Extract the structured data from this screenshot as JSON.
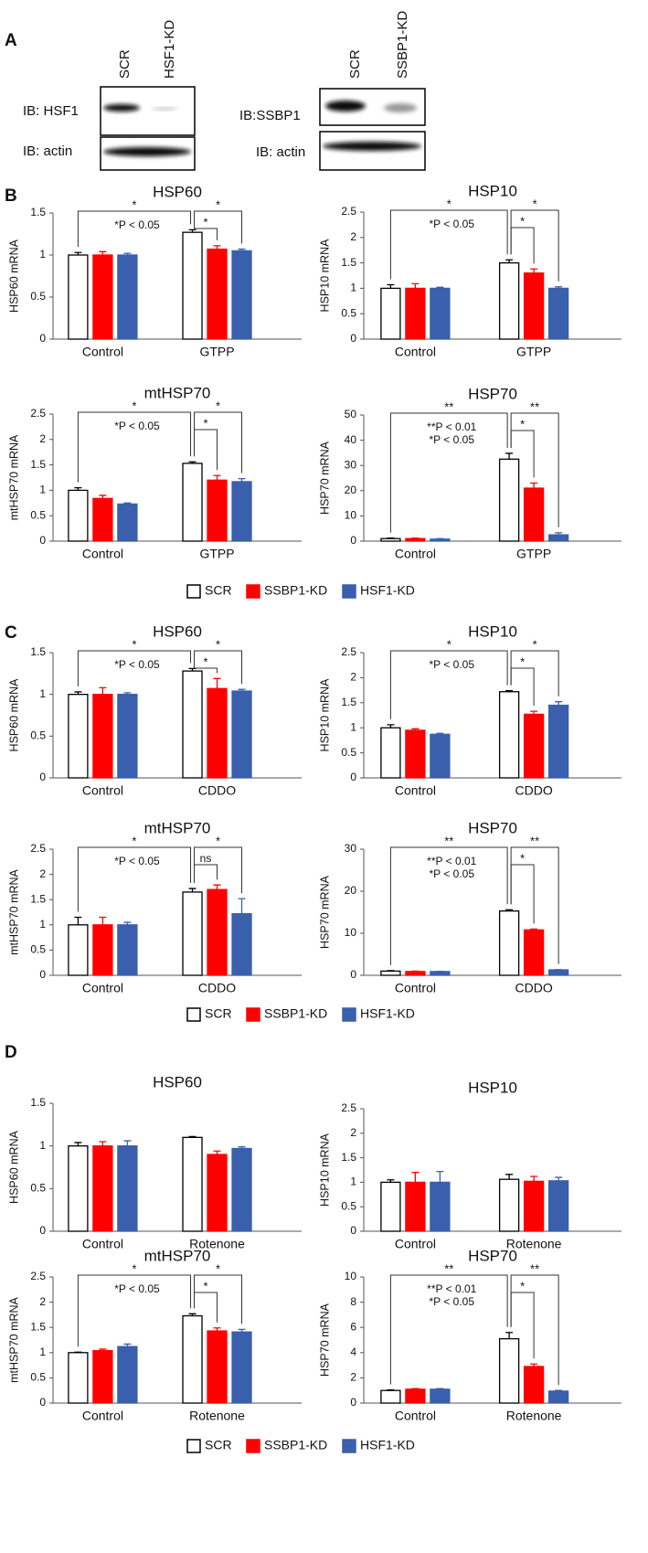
{
  "panel_labels": [
    "A",
    "B",
    "C",
    "D"
  ],
  "blots": [
    {
      "lanes": [
        "SCR",
        "HSF1-KD"
      ],
      "rows": [
        "IB: HSF1",
        "IB: actin"
      ]
    },
    {
      "lanes": [
        "SCR",
        "SSBP1-KD"
      ],
      "rows": [
        "IB:SSBP1",
        "IB: actin"
      ]
    }
  ],
  "chart_data": [
    {
      "type": "bar",
      "title": "HSP60",
      "y_label": "HSP60 mRNA",
      "categories": [
        "Control",
        "GTPP"
      ],
      "ylim": [
        0,
        1.5
      ],
      "yticks": [
        0,
        0.5,
        1,
        1.5
      ],
      "series": [
        {
          "name": "SCR",
          "color": "#ffffff",
          "values": [
            1.0,
            1.27
          ],
          "errors": [
            0.03,
            0.03
          ]
        },
        {
          "name": "SSBP1-KD",
          "color": "#ff0000",
          "values": [
            1.0,
            1.07
          ],
          "errors": [
            0.04,
            0.04
          ]
        },
        {
          "name": "HSF1-KD",
          "color": "#3a5fad",
          "values": [
            1.0,
            1.05
          ],
          "errors": [
            0.02,
            0.02
          ]
        }
      ],
      "bracket_labels": [
        "*",
        "*",
        "*"
      ],
      "notes": [
        "*P < 0.05"
      ]
    },
    {
      "type": "bar",
      "title": "HSP10",
      "y_label": "HSP10 mRNA",
      "categories": [
        "Control",
        "GTPP"
      ],
      "ylim": [
        0,
        2.5
      ],
      "yticks": [
        0,
        0.5,
        1,
        1.5,
        2,
        2.5
      ],
      "series": [
        {
          "name": "SCR",
          "color": "#ffffff",
          "values": [
            1.0,
            1.5
          ],
          "errors": [
            0.07,
            0.06
          ]
        },
        {
          "name": "SSBP1-KD",
          "color": "#ff0000",
          "values": [
            1.0,
            1.3
          ],
          "errors": [
            0.09,
            0.08
          ]
        },
        {
          "name": "HSF1-KD",
          "color": "#3a5fad",
          "values": [
            1.0,
            1.0
          ],
          "errors": [
            0.02,
            0.03
          ]
        }
      ],
      "bracket_labels": [
        "*",
        "*",
        "*"
      ],
      "notes": [
        "*P < 0.05"
      ]
    },
    {
      "type": "bar",
      "title": "mtHSP70",
      "y_label": "mtHSP70 mRNA",
      "categories": [
        "Control",
        "GTPP"
      ],
      "ylim": [
        0,
        2.5
      ],
      "yticks": [
        0,
        0.5,
        1,
        1.5,
        2,
        2.5
      ],
      "series": [
        {
          "name": "SCR",
          "color": "#ffffff",
          "values": [
            1.0,
            1.53
          ],
          "errors": [
            0.05,
            0.03
          ]
        },
        {
          "name": "SSBP1-KD",
          "color": "#ff0000",
          "values": [
            0.84,
            1.2
          ],
          "errors": [
            0.06,
            0.09
          ]
        },
        {
          "name": "HSF1-KD",
          "color": "#3a5fad",
          "values": [
            0.73,
            1.17
          ],
          "errors": [
            0.02,
            0.06
          ]
        }
      ],
      "bracket_labels": [
        "*",
        "*",
        "*"
      ],
      "notes": [
        "*P < 0.05"
      ]
    },
    {
      "type": "bar",
      "title": "HSP70",
      "y_label": "HSP70 mRNA",
      "categories": [
        "Control",
        "GTPP"
      ],
      "ylim": [
        0,
        50
      ],
      "yticks": [
        0,
        10,
        20,
        30,
        40,
        50
      ],
      "series": [
        {
          "name": "SCR",
          "color": "#ffffff",
          "values": [
            1,
            32.5
          ],
          "errors": [
            0.2,
            2.3
          ]
        },
        {
          "name": "SSBP1-KD",
          "color": "#ff0000",
          "values": [
            1,
            21
          ],
          "errors": [
            0.2,
            2
          ]
        },
        {
          "name": "HSF1-KD",
          "color": "#3a5fad",
          "values": [
            0.8,
            2.5
          ],
          "errors": [
            0.2,
            0.8
          ]
        }
      ],
      "bracket_labels": [
        "**",
        "*",
        "**"
      ],
      "notes": [
        "**P < 0.01",
        "*P < 0.05"
      ]
    },
    {
      "type": "bar",
      "title": "HSP60",
      "y_label": "HSP60 mRNA",
      "categories": [
        "Control",
        "CDDO"
      ],
      "ylim": [
        0,
        1.5
      ],
      "yticks": [
        0,
        0.5,
        1,
        1.5
      ],
      "series": [
        {
          "name": "SCR",
          "color": "#ffffff",
          "values": [
            1.0,
            1.28
          ],
          "errors": [
            0.03,
            0.03
          ]
        },
        {
          "name": "SSBP1-KD",
          "color": "#ff0000",
          "values": [
            1.0,
            1.07
          ],
          "errors": [
            0.08,
            0.12
          ]
        },
        {
          "name": "HSF1-KD",
          "color": "#3a5fad",
          "values": [
            1.0,
            1.04
          ],
          "errors": [
            0.02,
            0.02
          ]
        }
      ],
      "bracket_labels": [
        "*",
        "*",
        "*"
      ],
      "notes": [
        "*P < 0.05"
      ]
    },
    {
      "type": "bar",
      "title": "HSP10",
      "y_label": "HSP10 mRNA",
      "categories": [
        "Control",
        "CDDO"
      ],
      "ylim": [
        0,
        2.5
      ],
      "yticks": [
        0,
        0.5,
        1,
        1.5,
        2,
        2.5
      ],
      "series": [
        {
          "name": "SCR",
          "color": "#ffffff",
          "values": [
            1.0,
            1.72
          ],
          "errors": [
            0.06,
            0.02
          ]
        },
        {
          "name": "SSBP1-KD",
          "color": "#ff0000",
          "values": [
            0.95,
            1.27
          ],
          "errors": [
            0.03,
            0.06
          ]
        },
        {
          "name": "HSF1-KD",
          "color": "#3a5fad",
          "values": [
            0.87,
            1.45
          ],
          "errors": [
            0.02,
            0.07
          ]
        }
      ],
      "bracket_labels": [
        "*",
        "*",
        "*"
      ],
      "notes": [
        "*P < 0.05"
      ]
    },
    {
      "type": "bar",
      "title": "mtHSP70",
      "y_label": "mtHSP70 mRNA",
      "categories": [
        "Control",
        "CDDO"
      ],
      "ylim": [
        0,
        2.5
      ],
      "yticks": [
        0,
        0.5,
        1,
        1.5,
        2,
        2.5
      ],
      "series": [
        {
          "name": "SCR",
          "color": "#ffffff",
          "values": [
            1.0,
            1.65
          ],
          "errors": [
            0.15,
            0.07
          ]
        },
        {
          "name": "SSBP1-KD",
          "color": "#ff0000",
          "values": [
            1.0,
            1.7
          ],
          "errors": [
            0.15,
            0.09
          ]
        },
        {
          "name": "HSF1-KD",
          "color": "#3a5fad",
          "values": [
            1.0,
            1.22
          ],
          "errors": [
            0.05,
            0.3
          ]
        }
      ],
      "bracket_labels": [
        "*",
        "ns",
        "*"
      ],
      "notes": [
        "*P < 0.05"
      ]
    },
    {
      "type": "bar",
      "title": "HSP70",
      "y_label": "HSP70 mRNA",
      "categories": [
        "Control",
        "CDDO"
      ],
      "ylim": [
        0,
        30
      ],
      "yticks": [
        0,
        10,
        20,
        30
      ],
      "series": [
        {
          "name": "SCR",
          "color": "#ffffff",
          "values": [
            1,
            15.3
          ],
          "errors": [
            0.1,
            0.3
          ]
        },
        {
          "name": "SSBP1-KD",
          "color": "#ff0000",
          "values": [
            0.9,
            10.8
          ],
          "errors": [
            0.1,
            0.2
          ]
        },
        {
          "name": "HSF1-KD",
          "color": "#3a5fad",
          "values": [
            0.9,
            1.3
          ],
          "errors": [
            0.05,
            0.05
          ]
        }
      ],
      "bracket_labels": [
        "**",
        "*",
        "**"
      ],
      "notes": [
        "**P < 0.01",
        "*P < 0.05"
      ]
    },
    {
      "type": "bar",
      "title": "HSP60",
      "y_label": "HSP60 mRNA",
      "categories": [
        "Control",
        "Rotenone"
      ],
      "ylim": [
        0,
        1.5
      ],
      "yticks": [
        0,
        0.5,
        1,
        1.5
      ],
      "series": [
        {
          "name": "SCR",
          "color": "#ffffff",
          "values": [
            1.0,
            1.1
          ],
          "errors": [
            0.04,
            0.01
          ]
        },
        {
          "name": "SSBP1-KD",
          "color": "#ff0000",
          "values": [
            1.0,
            0.9
          ],
          "errors": [
            0.05,
            0.04
          ]
        },
        {
          "name": "HSF1-KD",
          "color": "#3a5fad",
          "values": [
            1.0,
            0.97
          ],
          "errors": [
            0.06,
            0.02
          ]
        }
      ],
      "bracket_labels": [],
      "notes": []
    },
    {
      "type": "bar",
      "title": "HSP10",
      "y_label": "HSP10 mRNA",
      "categories": [
        "Control",
        "Rotenone"
      ],
      "ylim": [
        0,
        2.5
      ],
      "yticks": [
        0,
        0.5,
        1,
        1.5,
        2,
        2.5
      ],
      "series": [
        {
          "name": "SCR",
          "color": "#ffffff",
          "values": [
            1.0,
            1.06
          ],
          "errors": [
            0.05,
            0.1
          ]
        },
        {
          "name": "SSBP1-KD",
          "color": "#ff0000",
          "values": [
            1.0,
            1.02
          ],
          "errors": [
            0.2,
            0.1
          ]
        },
        {
          "name": "HSF1-KD",
          "color": "#3a5fad",
          "values": [
            1.0,
            1.03
          ],
          "errors": [
            0.22,
            0.07
          ]
        }
      ],
      "bracket_labels": [],
      "notes": []
    },
    {
      "type": "bar",
      "title": "mtHSP70",
      "y_label": "mtHSP70 mRNA",
      "categories": [
        "Control",
        "Rotenone"
      ],
      "ylim": [
        0,
        2.5
      ],
      "yticks": [
        0,
        0.5,
        1,
        1.5,
        2,
        2.5
      ],
      "series": [
        {
          "name": "SCR",
          "color": "#ffffff",
          "values": [
            1.0,
            1.73
          ],
          "errors": [
            0.01,
            0.04
          ]
        },
        {
          "name": "SSBP1-KD",
          "color": "#ff0000",
          "values": [
            1.04,
            1.43
          ],
          "errors": [
            0.03,
            0.06
          ]
        },
        {
          "name": "HSF1-KD",
          "color": "#3a5fad",
          "values": [
            1.12,
            1.41
          ],
          "errors": [
            0.05,
            0.05
          ]
        }
      ],
      "bracket_labels": [
        "*",
        "*",
        "*"
      ],
      "notes": [
        "*P < 0.05"
      ]
    },
    {
      "type": "bar",
      "title": "HSP70",
      "y_label": "HSP70 mRNA",
      "categories": [
        "Control",
        "Rotenone"
      ],
      "ylim": [
        0,
        10
      ],
      "yticks": [
        0,
        2,
        4,
        6,
        8,
        10
      ],
      "series": [
        {
          "name": "SCR",
          "color": "#ffffff",
          "values": [
            1.0,
            5.1
          ],
          "errors": [
            0.05,
            0.5
          ]
        },
        {
          "name": "SSBP1-KD",
          "color": "#ff0000",
          "values": [
            1.1,
            2.9
          ],
          "errors": [
            0.05,
            0.2
          ]
        },
        {
          "name": "HSF1-KD",
          "color": "#3a5fad",
          "values": [
            1.1,
            0.95
          ],
          "errors": [
            0.05,
            0.05
          ]
        }
      ],
      "bracket_labels": [
        "**",
        "*",
        "**"
      ],
      "notes": [
        "**P < 0.01",
        "*P < 0.05"
      ]
    }
  ]
}
